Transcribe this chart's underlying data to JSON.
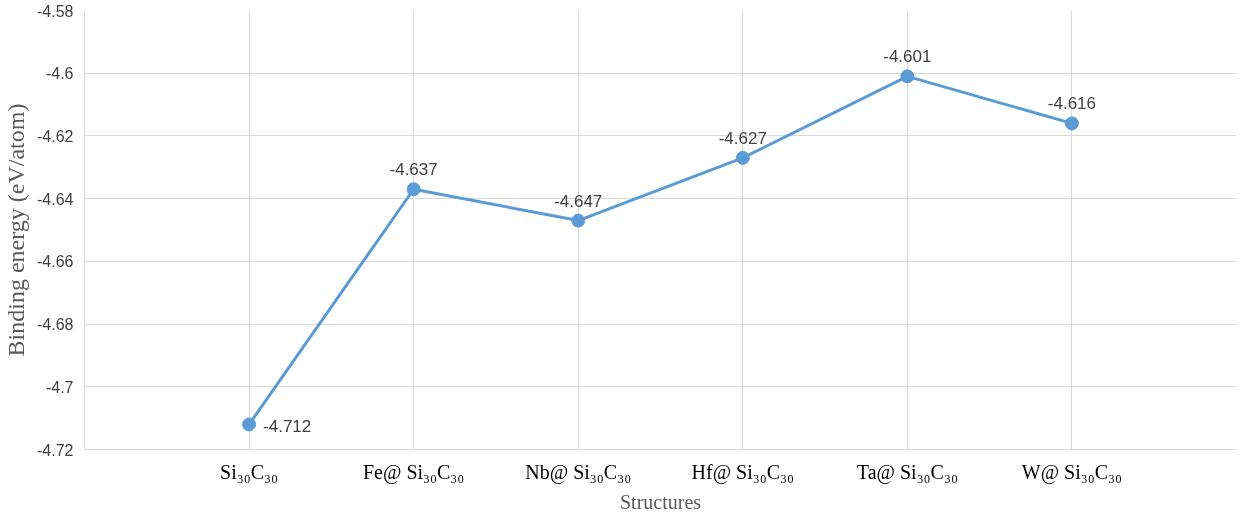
{
  "chart_data": {
    "type": "line",
    "xlabel": "Structures",
    "ylabel": "Binding energy (eV/atom)",
    "categories": [
      "Si₃₀C₃₀",
      "Fe@ Si₃₀C₃₀",
      "Nb@ Si₃₀C₃₀",
      "Hf@ Si₃₀C₃₀",
      "Ta@ Si₃₀C₃₀",
      "W@ Si₃₀C₃₀"
    ],
    "series": [
      {
        "color": "#5b9bd5",
        "values": [
          -4.712,
          -4.637,
          -4.647,
          -4.627,
          -4.601,
          -4.616
        ]
      }
    ],
    "ylim": [
      -4.72,
      -4.58
    ],
    "yticks": [
      -4.72,
      -4.7,
      -4.68,
      -4.66,
      -4.64,
      -4.62,
      -4.6,
      -4.58
    ],
    "grid": true,
    "marker": "circle",
    "line_style": "solid",
    "data_labels": true
  }
}
